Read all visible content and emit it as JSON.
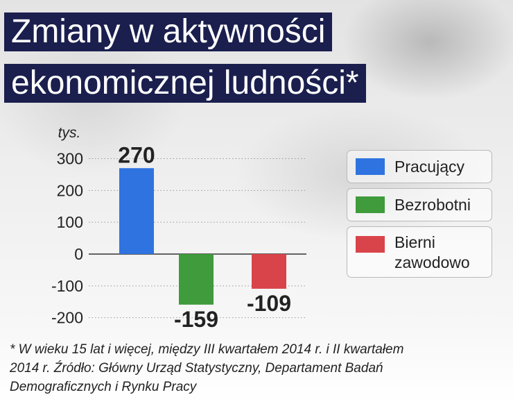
{
  "title": {
    "line1": "Zmiany w aktywności",
    "line2": "ekonomicznej ludności*"
  },
  "chart_data": {
    "type": "bar",
    "unit_label": "tys.",
    "categories": [
      "Pracujący",
      "Bezrobotni",
      "Bierni zawodowo"
    ],
    "values": [
      270,
      -159,
      -109
    ],
    "value_labels": [
      "270",
      "-159",
      "-109"
    ],
    "colors": [
      "#2f73e0",
      "#3f9b3b",
      "#d9444a"
    ],
    "ylim": [
      -200,
      300
    ],
    "yticks": [
      300,
      200,
      100,
      0,
      -100,
      -200
    ],
    "ytick_labels": [
      "300",
      "200",
      "100",
      "0",
      "-100",
      "-200"
    ],
    "grid": true,
    "legend_position": "right",
    "legend": [
      {
        "label_line1": "Pracujący",
        "label_line2": "",
        "color": "#2f73e0"
      },
      {
        "label_line1": "Bezrobotni",
        "label_line2": "",
        "color": "#3f9b3b"
      },
      {
        "label_line1": "Bierni",
        "label_line2": "zawodowo",
        "color": "#d9444a"
      }
    ]
  },
  "footnote": {
    "line1": "* W wieku 15 lat i więcej, między III kwartałem 2014 r. i II kwartałem",
    "line2": "2014 r. Źródło: Główny Urząd Statystyczny, Departament Badań",
    "line3": "Demograficznych i  Rynku Pracy"
  }
}
